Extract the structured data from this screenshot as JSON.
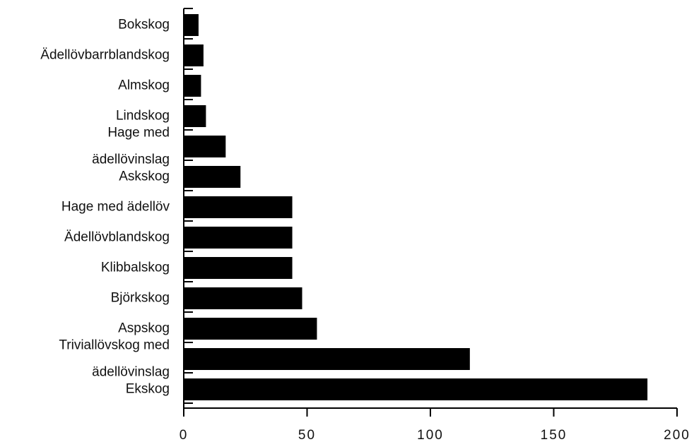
{
  "chart_data": {
    "type": "bar",
    "orientation": "horizontal",
    "categories": [
      [
        "Bokskog"
      ],
      [
        "Ädellövbarrblandskog"
      ],
      [
        "Almskog"
      ],
      [
        "Lindskog"
      ],
      [
        "Hage med",
        "ädellövinslag"
      ],
      [
        "Askskog"
      ],
      [
        "Hage med ädellöv"
      ],
      [
        "Ädellövblandskog"
      ],
      [
        "Klibbalskog"
      ],
      [
        "Björkskog"
      ],
      [
        "Aspskog"
      ],
      [
        "Triviallövskog med",
        "ädellövinslag"
      ],
      [
        "Ekskog"
      ]
    ],
    "values": [
      6,
      8,
      7,
      9,
      17,
      23,
      44,
      44,
      44,
      48,
      54,
      116,
      188
    ],
    "title": "",
    "xlabel": "",
    "ylabel": "",
    "xlim": [
      0,
      200
    ],
    "xticks": [
      0,
      50,
      100,
      150,
      200
    ],
    "grid": false,
    "colors": {
      "bar": "#000000",
      "axis": "#000000"
    }
  }
}
